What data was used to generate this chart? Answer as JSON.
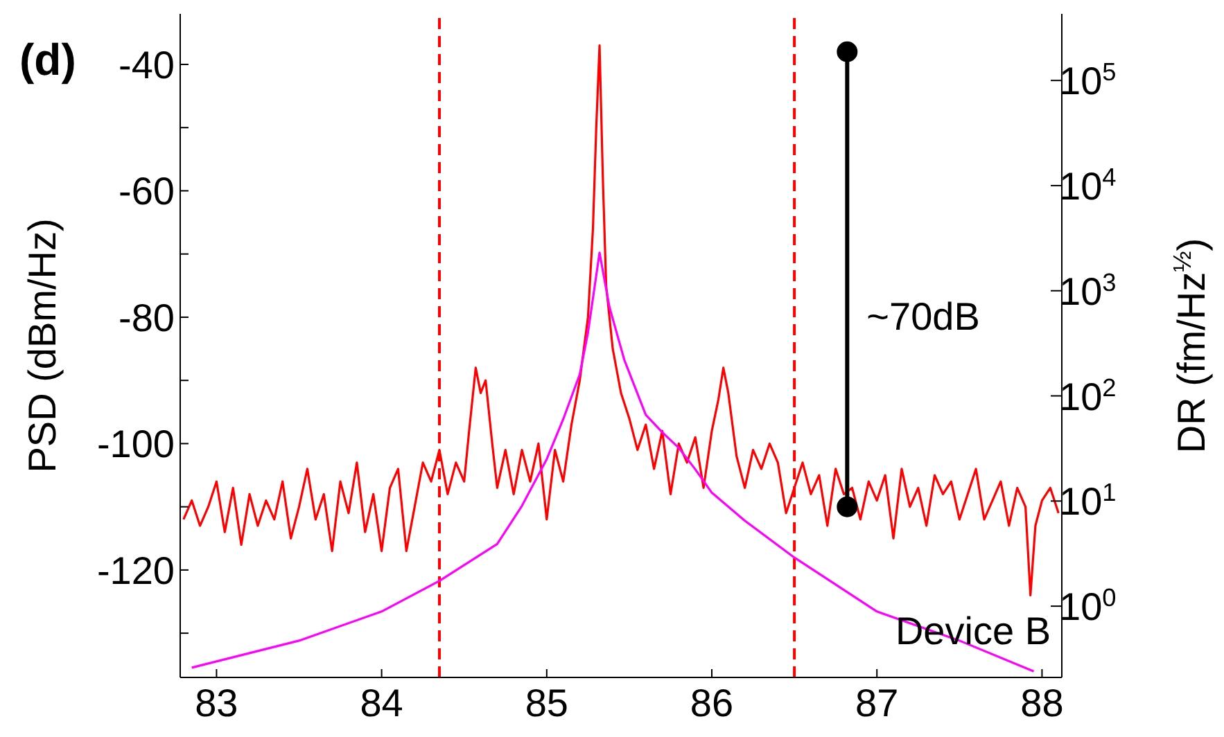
{
  "chart_data": {
    "type": "line",
    "ylabel": "PSD (dBm/Hz)",
    "y2label": "DR (fm/Hz$^{½}$)",
    "xlim": [
      82.78,
      88.12
    ],
    "xticks": [
      83,
      84,
      85,
      86,
      87,
      88
    ],
    "ylim": [
      -137,
      -32
    ],
    "yticks": [
      {
        "value": -130,
        "label": null
      },
      -120,
      {
        "value": -110,
        "label": null
      },
      -100,
      {
        "value": -90,
        "label": null
      },
      -80,
      {
        "value": -70,
        "label": null
      },
      -60,
      {
        "value": -50,
        "label": null
      },
      -40
    ],
    "y2lim": [
      0.21,
      430000
    ],
    "y2ticks": [
      {
        "value": 1,
        "label": "10$^{0}$"
      },
      {
        "value": 10,
        "label": "10$^{1}$"
      },
      {
        "value": 100,
        "label": "10$^{2}$"
      },
      {
        "value": 1000,
        "label": "10$^{3}$"
      },
      {
        "value": 10000,
        "label": "10$^{4}$"
      },
      {
        "value": 100000,
        "label": "10$^{5}$"
      }
    ],
    "log": "y2",
    "line_style": "solid",
    "series": [
      {
        "color": "#ff0000",
        "x": [
          82.8,
          82.85,
          82.9,
          82.95,
          83.0,
          83.05,
          83.1,
          83.15,
          83.2,
          83.25,
          83.3,
          83.35,
          83.4,
          83.45,
          83.5,
          83.55,
          83.6,
          83.65,
          83.7,
          83.75,
          83.8,
          83.85,
          83.9,
          83.95,
          84.0,
          84.05,
          84.1,
          84.15,
          84.2,
          84.25,
          84.3,
          84.35,
          84.4,
          84.45,
          84.5,
          84.53,
          84.57,
          84.6,
          84.63,
          84.67,
          84.7,
          84.75,
          84.8,
          84.85,
          84.9,
          84.95,
          85.0,
          85.05,
          85.1,
          85.15,
          85.2,
          85.25,
          85.28,
          85.3,
          85.32,
          85.34,
          85.36,
          85.4,
          85.45,
          85.5,
          85.55,
          85.6,
          85.65,
          85.7,
          85.75,
          85.8,
          85.85,
          85.9,
          85.95,
          86.0,
          86.04,
          86.07,
          86.1,
          86.15,
          86.2,
          86.25,
          86.3,
          86.35,
          86.4,
          86.45,
          86.5,
          86.55,
          86.6,
          86.65,
          86.7,
          86.75,
          86.8,
          86.85,
          86.9,
          86.95,
          87.0,
          87.05,
          87.1,
          87.15,
          87.2,
          87.25,
          87.3,
          87.35,
          87.4,
          87.45,
          87.5,
          87.55,
          87.6,
          87.65,
          87.7,
          87.75,
          87.8,
          87.85,
          87.9,
          87.93,
          87.96,
          88.0,
          88.05,
          88.1
        ],
        "values": [
          -112,
          -109,
          -113,
          -110,
          -106,
          -114,
          -107,
          -116,
          -108,
          -113,
          -109,
          -112,
          -106,
          -115,
          -110,
          -104,
          -112,
          -108,
          -117,
          -106,
          -111,
          -103,
          -114,
          -108,
          -117,
          -107,
          -104,
          -117,
          -110,
          -103,
          -106,
          -101,
          -108,
          -103,
          -106,
          -98,
          -88,
          -92,
          -90,
          -100,
          -107,
          -101,
          -108,
          -101,
          -106,
          -100,
          -112,
          -101,
          -106,
          -97,
          -90,
          -80,
          -66,
          -50,
          -37,
          -58,
          -75,
          -85,
          -92,
          -96,
          -101,
          -97,
          -104,
          -98,
          -108,
          -100,
          -103,
          -99,
          -107,
          -98,
          -93,
          -88,
          -92,
          -102,
          -107,
          -101,
          -104,
          -100,
          -103,
          -111,
          -107,
          -103,
          -108,
          -105,
          -113,
          -104,
          -108,
          -107,
          -112,
          -106,
          -109,
          -105,
          -115,
          -104,
          -110,
          -107,
          -113,
          -105,
          -108,
          -106,
          -112,
          -108,
          -104,
          -112,
          -109,
          -106,
          -113,
          -107,
          -110,
          -124,
          -113,
          -109,
          -107,
          -111
        ]
      },
      {
        "color": "#ff00ff",
        "axis": "y2",
        "x": [
          82.85,
          83.5,
          84.0,
          84.35,
          84.7,
          84.85,
          85.0,
          85.1,
          85.2,
          85.25,
          85.32,
          85.38,
          85.47,
          85.6,
          85.7,
          85.8,
          85.9,
          86.0,
          86.2,
          86.5,
          87.0,
          87.5,
          87.95
        ],
        "values": [
          0.26,
          0.47,
          0.89,
          1.74,
          3.9,
          9,
          25,
          60,
          160,
          400,
          2300,
          700,
          220,
          66,
          45,
          32,
          20,
          12,
          6.5,
          2.9,
          0.89,
          0.47,
          0.24
        ]
      },
      {
        "color": "#000000",
        "marker": "circle",
        "x": [
          86.82,
          86.82
        ],
        "values": [
          -110,
          -38
        ]
      }
    ],
    "ref_lines": [
      {
        "axis": "x",
        "value": 84.35,
        "color": "#ff0000",
        "line_style": "dashed"
      },
      {
        "axis": "x",
        "value": 86.5,
        "color": "#ff0000",
        "line_style": "dashed"
      }
    ],
    "annotations": [
      {
        "text": "~70dB",
        "x": 86.82,
        "y": -82
      },
      "Device B",
      "(d)"
    ]
  }
}
